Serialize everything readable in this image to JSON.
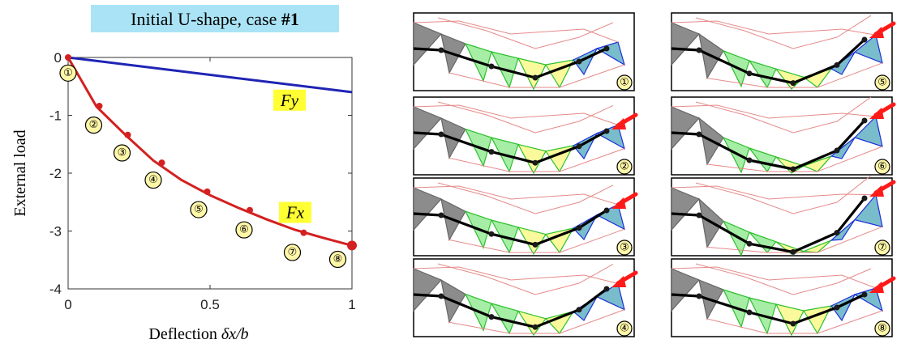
{
  "chart_data": {
    "type": "line",
    "title": "Initial U-shape, case #1",
    "title_parts": [
      "Initial U-shape, case ",
      "#1"
    ],
    "xlabel": "Deflection δx/b",
    "xlabel_parts": [
      "Deflection ",
      "δx/b"
    ],
    "ylabel": "External load",
    "xlim": [
      0,
      1
    ],
    "ylim": [
      -4,
      0
    ],
    "x_ticks": [
      0,
      0.5,
      1
    ],
    "x_tick_labels": [
      "0",
      "0.5",
      "1"
    ],
    "y_ticks": [
      0,
      -1,
      -2,
      -3,
      -4
    ],
    "y_tick_labels": [
      "0",
      "-1",
      "-2",
      "-3",
      "-4"
    ],
    "grid": false,
    "series": [
      {
        "name": "Fy",
        "color": "#1f24b4",
        "x": [
          0,
          1
        ],
        "y": [
          0,
          -0.6
        ]
      },
      {
        "name": "Fx",
        "color": "#d42020",
        "x": [
          0,
          0.1,
          0.2,
          0.3,
          0.4,
          0.5,
          0.6,
          0.7,
          0.8,
          0.9,
          1.0
        ],
        "y": [
          0,
          -0.85,
          -1.33,
          -1.78,
          -2.12,
          -2.38,
          -2.6,
          -2.8,
          -2.98,
          -3.12,
          -3.25
        ],
        "markers": {
          "x": [
            0,
            0.11,
            0.21,
            0.33,
            0.49,
            0.64,
            0.83,
            1.0
          ],
          "y": [
            0,
            -0.84,
            -1.34,
            -1.82,
            -2.32,
            -2.64,
            -3.03,
            -3.25
          ]
        }
      }
    ],
    "annotations": [
      {
        "label": "①",
        "x": 0.0,
        "y": -0.27
      },
      {
        "label": "②",
        "x": 0.09,
        "y": -1.17
      },
      {
        "label": "③",
        "x": 0.19,
        "y": -1.65
      },
      {
        "label": "④",
        "x": 0.3,
        "y": -2.12
      },
      {
        "label": "⑤",
        "x": 0.46,
        "y": -2.63
      },
      {
        "label": "⑥",
        "x": 0.62,
        "y": -2.98
      },
      {
        "label": "⑦",
        "x": 0.79,
        "y": -3.37
      },
      {
        "label": "⑧",
        "x": 0.95,
        "y": -3.49
      }
    ]
  },
  "frames": [
    {
      "label": "①",
      "arrow": false
    },
    {
      "label": "②",
      "arrow": true
    },
    {
      "label": "③",
      "arrow": true
    },
    {
      "label": "④",
      "arrow": true
    },
    {
      "label": "⑤",
      "arrow": true
    },
    {
      "label": "⑥",
      "arrow": true
    },
    {
      "label": "⑦",
      "arrow": true
    },
    {
      "label": "⑧",
      "arrow": true
    }
  ],
  "colors": {
    "triangle_gray": "#8c8c8c",
    "triangle_green": "#a6eda6",
    "triangle_yellow": "#fafa9c",
    "triangle_teal": "#79bccc",
    "edge_green": "#2cc02c",
    "edge_blue": "#1a2fd8",
    "edge_pink": "#e68a8a",
    "arrow_red": "#ff1a1a"
  }
}
